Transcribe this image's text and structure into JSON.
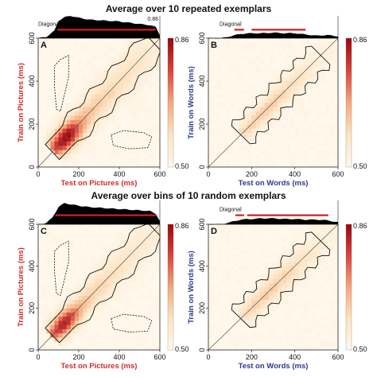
{
  "titles": {
    "top": "Average over 10 repeated exemplars",
    "bottom": "Average over bins of 10 random exemplars"
  },
  "colors": {
    "pictures": "#d42a2a",
    "words": "#2b3a8f",
    "heat_low": "#fff6e8",
    "heat_high": "#9e0f12",
    "significance_bar": "#d11f1f",
    "diagonal_fill": "#000000"
  },
  "chart_data": [
    {
      "panel": "A",
      "type": "heatmap",
      "xlabel": "Test on Pictures (ms)",
      "ylabel": "Train on Pictures (ms)",
      "label_color": "pictures",
      "xlim": [
        0,
        600
      ],
      "ylim": [
        0,
        600
      ],
      "xticks": [
        "0",
        "200",
        "400",
        "600"
      ],
      "yticks": [
        "0",
        "200",
        "400",
        "600"
      ],
      "colorbar": {
        "max_label": "0.86",
        "min_label": "0.50",
        "range": [
          0.5,
          0.86
        ]
      },
      "diagonal": {
        "label": "Diagonal",
        "max_label": "0.86",
        "significant_range_ms": [
          95,
          580
        ],
        "profile": {
          "x": [
            0,
            40,
            80,
            100,
            130,
            160,
            200,
            250,
            300,
            350,
            400,
            450,
            500,
            550,
            580,
            600
          ],
          "y": [
            0.5,
            0.52,
            0.62,
            0.78,
            0.84,
            0.86,
            0.83,
            0.8,
            0.79,
            0.78,
            0.77,
            0.75,
            0.73,
            0.71,
            0.68,
            0.55
          ]
        }
      },
      "heat": {
        "peak": 0.86,
        "band_start_ms": 70,
        "band_width_ms": 60,
        "peak_ms": 140
      }
    },
    {
      "panel": "B",
      "type": "heatmap",
      "xlabel": "Test on Words (ms)",
      "ylabel": "Train on Words (ms)",
      "label_color": "words",
      "xlim": [
        0,
        600
      ],
      "ylim": [
        0,
        600
      ],
      "xticks": [
        "0",
        "200",
        "400",
        "600"
      ],
      "yticks": [
        "0",
        "200",
        "400",
        "600"
      ],
      "colorbar": {
        "max_label": "0.86",
        "min_label": "0.50",
        "range": [
          0.5,
          0.86
        ]
      },
      "diagonal": {
        "label": "Diagonal",
        "significant_range_ms": [
          [
            120,
            165
          ],
          [
            200,
            450
          ]
        ],
        "profile": {
          "x": [
            0,
            60,
            100,
            150,
            200,
            250,
            300,
            350,
            400,
            450,
            500,
            550,
            600
          ],
          "y": [
            0.5,
            0.5,
            0.53,
            0.57,
            0.58,
            0.58,
            0.59,
            0.58,
            0.58,
            0.56,
            0.54,
            0.55,
            0.53
          ]
        }
      },
      "heat": {
        "peak": 0.62,
        "band_start_ms": 150,
        "band_width_ms": 40,
        "peak_ms": 260
      }
    },
    {
      "panel": "C",
      "type": "heatmap",
      "xlabel": "Test on Pictures (ms)",
      "ylabel": "Train on Pictures (ms)",
      "label_color": "pictures",
      "xlim": [
        0,
        600
      ],
      "ylim": [
        0,
        600
      ],
      "xticks": [
        "0",
        "200",
        "400",
        "600"
      ],
      "yticks": [
        "0",
        "200",
        "400",
        "600"
      ],
      "colorbar": {
        "max_label": "0.86",
        "min_label": "0.50",
        "range": [
          0.5,
          0.86
        ]
      },
      "diagonal": {
        "significant_range_ms": [
          85,
          580
        ],
        "profile": {
          "x": [
            0,
            40,
            70,
            100,
            130,
            160,
            200,
            250,
            300,
            350,
            400,
            450,
            500,
            550,
            580,
            600
          ],
          "y": [
            0.5,
            0.52,
            0.6,
            0.76,
            0.82,
            0.8,
            0.78,
            0.76,
            0.75,
            0.74,
            0.73,
            0.72,
            0.71,
            0.7,
            0.66,
            0.55
          ]
        }
      },
      "heat": {
        "peak": 0.82,
        "band_start_ms": 60,
        "band_width_ms": 55,
        "peak_ms": 130
      }
    },
    {
      "panel": "D",
      "type": "heatmap",
      "xlabel": "Test on Words (ms)",
      "ylabel": "Train on Words (ms)",
      "label_color": "words",
      "xlim": [
        0,
        600
      ],
      "ylim": [
        0,
        600
      ],
      "xticks": [
        "0",
        "200",
        "400",
        "600"
      ],
      "yticks": [
        "0",
        "200",
        "400",
        "600"
      ],
      "colorbar": {
        "max_label": "0.86",
        "min_label": "0.50",
        "range": [
          0.5,
          0.86
        ]
      },
      "diagonal": {
        "label": "Diagonal",
        "significant_range_ms": [
          [
            125,
            165
          ],
          [
            180,
            555
          ]
        ],
        "profile": {
          "x": [
            0,
            60,
            100,
            150,
            200,
            250,
            300,
            350,
            400,
            450,
            500,
            550,
            600
          ],
          "y": [
            0.5,
            0.5,
            0.53,
            0.57,
            0.58,
            0.59,
            0.59,
            0.58,
            0.58,
            0.57,
            0.57,
            0.56,
            0.53
          ]
        }
      },
      "heat": {
        "peak": 0.62,
        "band_start_ms": 150,
        "band_width_ms": 45,
        "peak_ms": 280
      }
    }
  ]
}
